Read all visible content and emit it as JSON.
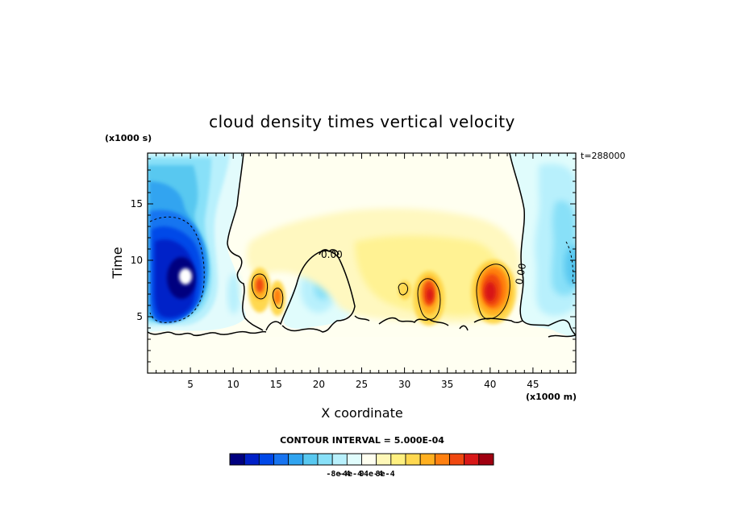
{
  "chart_data": {
    "type": "heatmap",
    "title": "cloud density times vertical velocity",
    "xlabel": "X coordinate",
    "ylabel": "Time",
    "x_units": "(x1000 m)",
    "y_units": "(x1000 s)",
    "time_stamp": "t=288000",
    "xlim": [
      0,
      50
    ],
    "ylim": [
      0,
      19.5
    ],
    "x_ticks": [
      5,
      10,
      15,
      20,
      25,
      30,
      35,
      40,
      45
    ],
    "y_ticks": [
      5,
      10,
      15
    ],
    "contour_interval_text": "CONTOUR INTERVAL = 5.000E-04",
    "contour_interval": 0.0005,
    "zero_contour_label": "0.00",
    "colorbar": {
      "colors": [
        "#00007f",
        "#0020c8",
        "#0048e8",
        "#1874f0",
        "#30a4f0",
        "#58c8f0",
        "#88e0f8",
        "#b8f0fc",
        "#e0fcfc",
        "#fffff0",
        "#fff8b8",
        "#fff080",
        "#ffd850",
        "#ffb020",
        "#ff8010",
        "#f04810",
        "#d81818",
        "#a00010"
      ],
      "tick_labels": [
        "-8e-4",
        "-4e-4",
        "0",
        "4e-4",
        "8e-4"
      ]
    },
    "features": [
      {
        "name": "strong downdraft core",
        "x": 4,
        "y": 9,
        "value": -0.0009
      },
      {
        "name": "updraft cell",
        "x": 13,
        "y": 8,
        "value": 0.0005
      },
      {
        "name": "updraft cell",
        "x": 15,
        "y": 7,
        "value": 0.0004
      },
      {
        "name": "weak downdraft",
        "x": 20,
        "y": 7,
        "value": -0.0002
      },
      {
        "name": "updraft cell",
        "x": 33,
        "y": 7,
        "value": 0.0006
      },
      {
        "name": "updraft core",
        "x": 40,
        "y": 8,
        "value": 0.0008
      },
      {
        "name": "downdraft (right edge)",
        "x": 48,
        "y": 10,
        "value": -0.0003
      }
    ]
  }
}
